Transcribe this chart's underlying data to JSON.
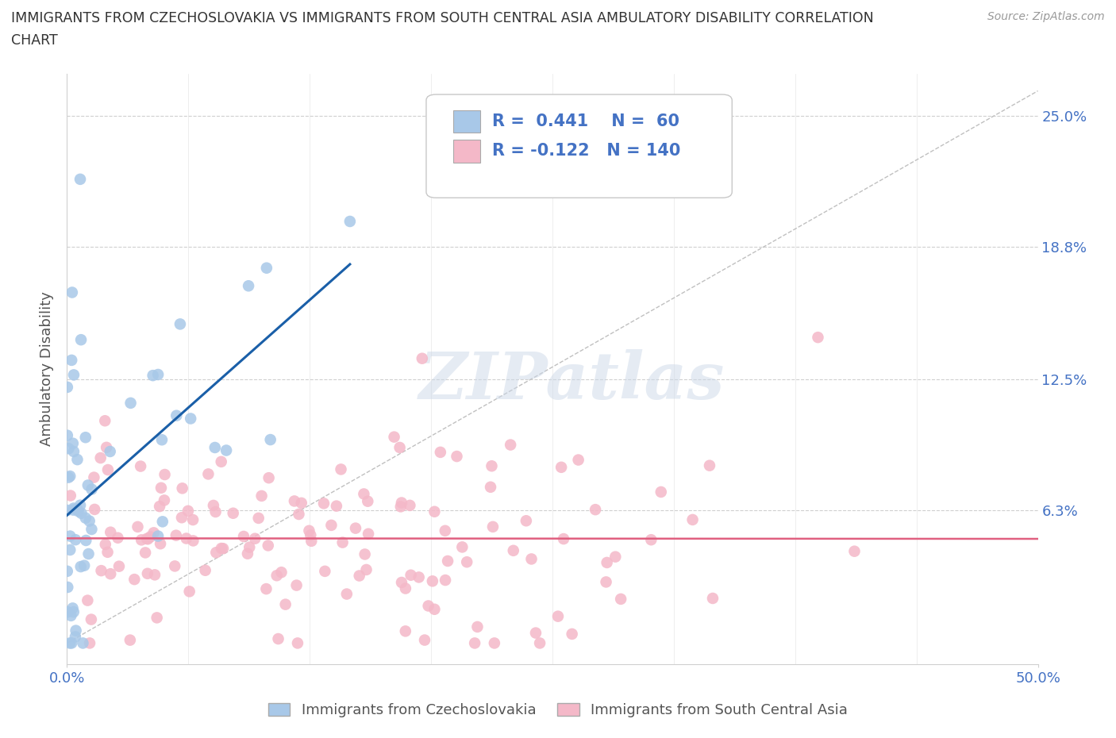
{
  "title_line1": "IMMIGRANTS FROM CZECHOSLOVAKIA VS IMMIGRANTS FROM SOUTH CENTRAL ASIA AMBULATORY DISABILITY CORRELATION",
  "title_line2": "CHART",
  "source": "Source: ZipAtlas.com",
  "ylabel": "Ambulatory Disability",
  "x_min": 0.0,
  "x_max": 0.5,
  "y_min": -0.01,
  "y_max": 0.27,
  "y_ticks": [
    0.0,
    0.063,
    0.125,
    0.188,
    0.25
  ],
  "y_tick_labels": [
    "",
    "6.3%",
    "12.5%",
    "18.8%",
    "25.0%"
  ],
  "x_tick_left": "0.0%",
  "x_tick_right": "50.0%",
  "legend_label1": "Immigrants from Czechoslovakia",
  "legend_label2": "Immigrants from South Central Asia",
  "R1": 0.441,
  "N1": 60,
  "R2": -0.122,
  "N2": 140,
  "color1": "#a8c8e8",
  "color2": "#f4b8c8",
  "regression_color1": "#1a5fa8",
  "regression_color2": "#e06080",
  "diag_color": "#c0c0c0",
  "watermark": "ZIPatlas",
  "background_color": "#ffffff",
  "grid_color": "#d0d0d0",
  "tick_color": "#4472C4",
  "title_color": "#333333",
  "label_color": "#555555"
}
